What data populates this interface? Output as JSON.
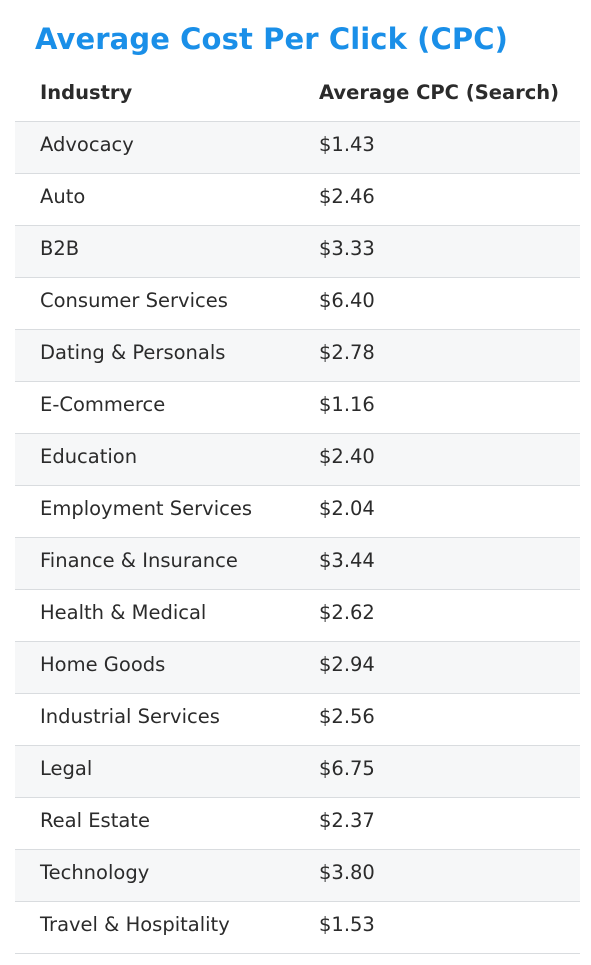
{
  "title": "Average Cost Per Click (CPC)",
  "chart_data": {
    "type": "table",
    "title": "Average Cost Per Click (CPC)",
    "columns": [
      "Industry",
      "Average CPC (Search)"
    ],
    "rows": [
      {
        "industry": "Advocacy",
        "cpc": "$1.43",
        "value": 1.43
      },
      {
        "industry": "Auto",
        "cpc": "$2.46",
        "value": 2.46
      },
      {
        "industry": "B2B",
        "cpc": "$3.33",
        "value": 3.33
      },
      {
        "industry": "Consumer Services",
        "cpc": "$6.40",
        "value": 6.4
      },
      {
        "industry": "Dating & Personals",
        "cpc": "$2.78",
        "value": 2.78
      },
      {
        "industry": "E-Commerce",
        "cpc": "$1.16",
        "value": 1.16
      },
      {
        "industry": "Education",
        "cpc": "$2.40",
        "value": 2.4
      },
      {
        "industry": "Employment Services",
        "cpc": "$2.04",
        "value": 2.04
      },
      {
        "industry": "Finance & Insurance",
        "cpc": "$3.44",
        "value": 3.44
      },
      {
        "industry": "Health & Medical",
        "cpc": "$2.62",
        "value": 2.62
      },
      {
        "industry": "Home Goods",
        "cpc": "$2.94",
        "value": 2.94
      },
      {
        "industry": "Industrial Services",
        "cpc": "$2.56",
        "value": 2.56
      },
      {
        "industry": "Legal",
        "cpc": "$6.75",
        "value": 6.75
      },
      {
        "industry": "Real Estate",
        "cpc": "$2.37",
        "value": 2.37
      },
      {
        "industry": "Technology",
        "cpc": "$3.80",
        "value": 3.8
      },
      {
        "industry": "Travel & Hospitality",
        "cpc": "$1.53",
        "value": 1.53
      }
    ]
  },
  "colors": {
    "title": "#1a8fe8",
    "stripe": "#f6f7f8",
    "divider": "#d9dcdf"
  }
}
